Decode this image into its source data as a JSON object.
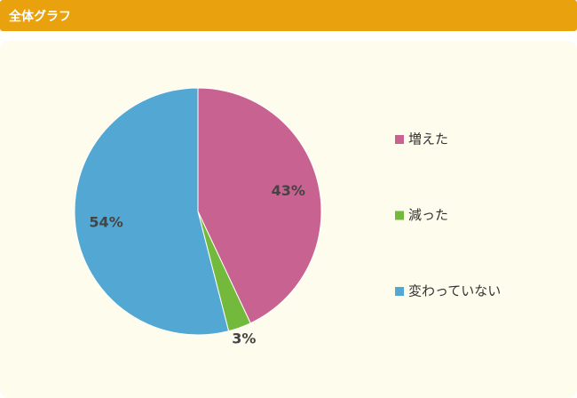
{
  "header": {
    "title": "全体グラフ"
  },
  "chart_data": {
    "type": "pie",
    "categories": [
      "増えた",
      "減った",
      "変わっていない"
    ],
    "values": [
      43,
      3,
      54
    ],
    "value_labels": [
      "43%",
      "3%",
      "54%"
    ],
    "colors": [
      "#c86291",
      "#73b93b",
      "#52a8d3"
    ],
    "legend": "right"
  }
}
